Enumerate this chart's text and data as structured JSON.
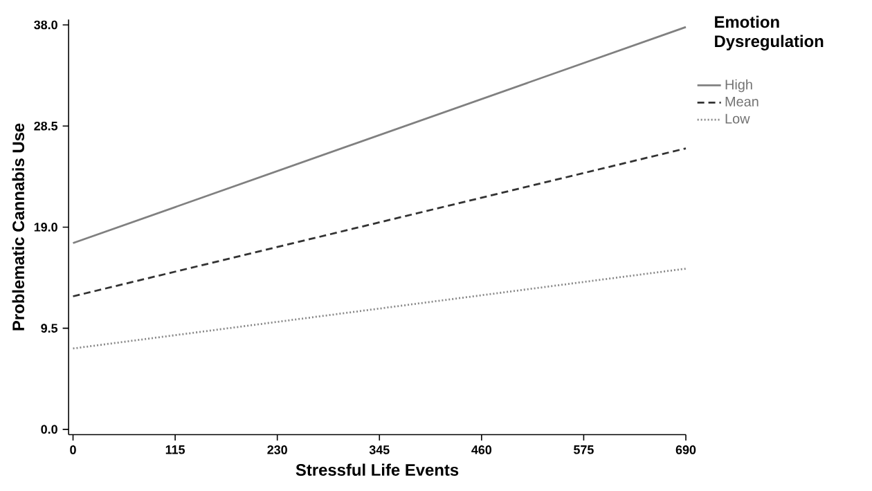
{
  "chart_data": {
    "type": "line",
    "xlabel": "Stressful Life Events",
    "ylabel": "Problematic Cannabis Use",
    "legend_title": "Emotion Dysregulation",
    "legend": "top right",
    "grid": false,
    "marker": "none",
    "x": [
      0,
      690
    ],
    "xlim": [
      -5,
      690
    ],
    "xticks": [
      0,
      115,
      230,
      345,
      460,
      575,
      690
    ],
    "ylim": [
      -0.5,
      38.5
    ],
    "yticks": [
      {
        "value": 0,
        "label": "0.0"
      },
      {
        "value": 9.5,
        "label": "9.5"
      },
      {
        "value": 19,
        "label": "19.0"
      },
      {
        "value": 28.5,
        "label": "28.5"
      },
      {
        "value": 38,
        "label": "38.0"
      }
    ],
    "series": [
      {
        "name": "High",
        "color": "#808080",
        "line_style": "solid",
        "values": [
          17.5,
          37.8
        ]
      },
      {
        "name": "Mean",
        "color": "#333333",
        "line_style": "dashed",
        "values": [
          12.5,
          26.4
        ]
      },
      {
        "name": "Low",
        "color": "#888888",
        "line_style": "dotted",
        "values": [
          7.6,
          15.1
        ]
      }
    ]
  }
}
